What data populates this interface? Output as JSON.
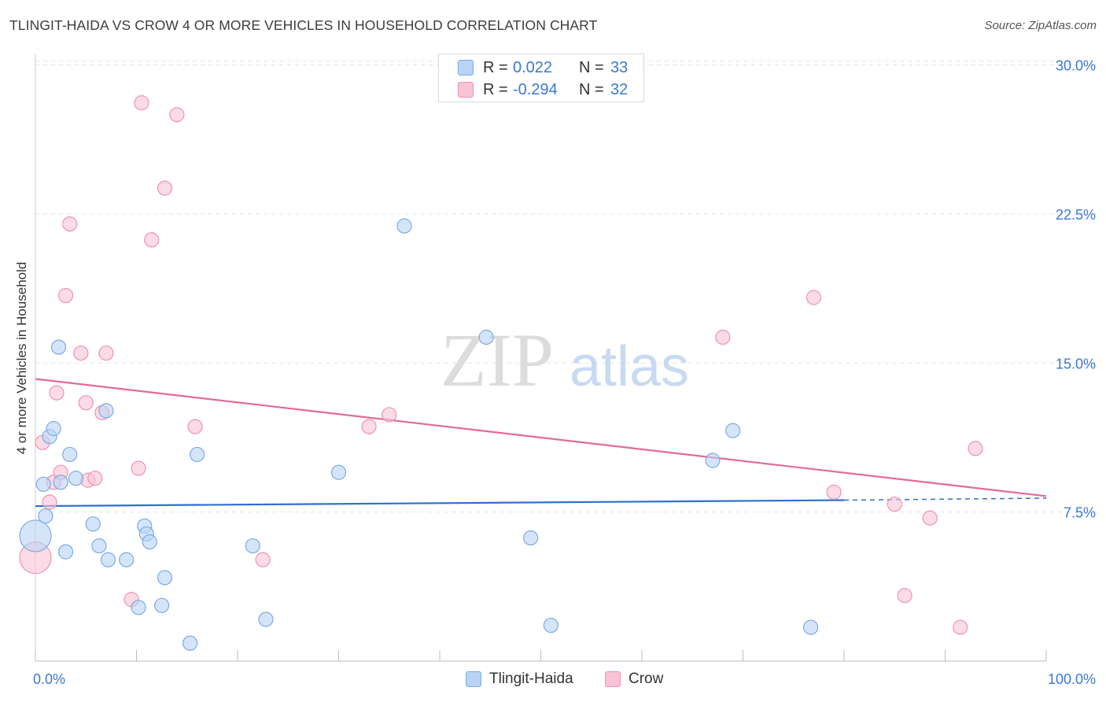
{
  "header": {
    "title": "TLINGIT-HAIDA VS CROW 4 OR MORE VEHICLES IN HOUSEHOLD CORRELATION CHART",
    "source": "Source: ZipAtlas.com"
  },
  "watermark": {
    "zip": "ZIP",
    "atlas": "atlas"
  },
  "legend": {
    "rows": [
      {
        "r_label": "R =",
        "r_value": "0.022",
        "n_label": "N =",
        "n_value": "33"
      },
      {
        "r_label": "R =",
        "r_value": "-0.294",
        "n_label": "N =",
        "n_value": "32"
      }
    ]
  },
  "bottom_legend": {
    "series1": "Tlingit-Haida",
    "series2": "Crow"
  },
  "colors": {
    "tlingit_fill": "#b9d3f5",
    "tlingit_stroke": "#7aaae6",
    "tlingit_line": "#2e6fcf",
    "crow_fill": "#f8c3d3",
    "crow_stroke": "#ee93b0",
    "crow_line": "#e46a95",
    "tick_label": "#3a78d6",
    "grid": "#e3e3e3"
  },
  "chart_data": {
    "type": "scatter",
    "title": "TLINGIT-HAIDA VS CROW 4 OR MORE VEHICLES IN HOUSEHOLD CORRELATION CHART",
    "xlabel": "",
    "ylabel": "4 or more Vehicles in Household",
    "xlim": [
      0,
      100
    ],
    "ylim": [
      0,
      30.5
    ],
    "x_tick_labels": [
      "0.0%",
      "100.0%"
    ],
    "y_ticks": [
      7.5,
      15.0,
      22.5,
      30.0
    ],
    "y_tick_labels": [
      "7.5%",
      "15.0%",
      "22.5%",
      "30.0%"
    ],
    "grid": true,
    "series": [
      {
        "name": "Tlingit-Haida",
        "r": 0.022,
        "n": 33,
        "trend": {
          "x_start": 0,
          "y_start": 7.8,
          "x_solid_end": 80,
          "y_solid_end": 8.1,
          "x_end": 100,
          "y_end": 8.2
        },
        "points": [
          {
            "x": 0.0,
            "y": 6.3,
            "big": true
          },
          {
            "x": 0.8,
            "y": 8.9
          },
          {
            "x": 1.0,
            "y": 7.3
          },
          {
            "x": 1.4,
            "y": 11.3
          },
          {
            "x": 1.8,
            "y": 11.7
          },
          {
            "x": 2.3,
            "y": 15.8
          },
          {
            "x": 2.5,
            "y": 9.0
          },
          {
            "x": 3.0,
            "y": 5.5
          },
          {
            "x": 3.4,
            "y": 10.4
          },
          {
            "x": 4.0,
            "y": 9.2
          },
          {
            "x": 5.7,
            "y": 6.9
          },
          {
            "x": 6.3,
            "y": 5.8
          },
          {
            "x": 7.0,
            "y": 12.6
          },
          {
            "x": 7.2,
            "y": 5.1
          },
          {
            "x": 9.0,
            "y": 5.1
          },
          {
            "x": 10.2,
            "y": 2.7
          },
          {
            "x": 10.8,
            "y": 6.8
          },
          {
            "x": 11.0,
            "y": 6.4
          },
          {
            "x": 11.3,
            "y": 6.0
          },
          {
            "x": 12.5,
            "y": 2.8
          },
          {
            "x": 12.8,
            "y": 4.2
          },
          {
            "x": 15.3,
            "y": 0.9
          },
          {
            "x": 16.0,
            "y": 10.4
          },
          {
            "x": 21.5,
            "y": 5.8
          },
          {
            "x": 22.8,
            "y": 2.1
          },
          {
            "x": 30.0,
            "y": 9.5
          },
          {
            "x": 36.5,
            "y": 21.9
          },
          {
            "x": 44.6,
            "y": 16.3
          },
          {
            "x": 49.0,
            "y": 6.2
          },
          {
            "x": 51.0,
            "y": 1.8
          },
          {
            "x": 67.0,
            "y": 10.1
          },
          {
            "x": 69.0,
            "y": 11.6
          },
          {
            "x": 76.7,
            "y": 1.7
          }
        ]
      },
      {
        "name": "Crow",
        "r": -0.294,
        "n": 32,
        "trend": {
          "x_start": 0,
          "y_start": 14.2,
          "x_end": 100,
          "y_end": 8.3
        },
        "points": [
          {
            "x": 0.0,
            "y": 5.2,
            "big": true
          },
          {
            "x": 0.7,
            "y": 11.0
          },
          {
            "x": 1.4,
            "y": 8.0
          },
          {
            "x": 1.8,
            "y": 9.0
          },
          {
            "x": 2.1,
            "y": 13.5
          },
          {
            "x": 2.5,
            "y": 9.5
          },
          {
            "x": 3.0,
            "y": 18.4
          },
          {
            "x": 3.4,
            "y": 22.0
          },
          {
            "x": 4.5,
            "y": 15.5
          },
          {
            "x": 5.0,
            "y": 13.0
          },
          {
            "x": 5.2,
            "y": 9.1
          },
          {
            "x": 5.9,
            "y": 9.2
          },
          {
            "x": 6.6,
            "y": 12.5
          },
          {
            "x": 7.0,
            "y": 15.5
          },
          {
            "x": 9.5,
            "y": 3.1
          },
          {
            "x": 10.2,
            "y": 9.7
          },
          {
            "x": 10.5,
            "y": 28.1
          },
          {
            "x": 11.5,
            "y": 21.2
          },
          {
            "x": 12.8,
            "y": 23.8
          },
          {
            "x": 14.0,
            "y": 27.5
          },
          {
            "x": 15.8,
            "y": 11.8
          },
          {
            "x": 22.5,
            "y": 5.1
          },
          {
            "x": 33.0,
            "y": 11.8
          },
          {
            "x": 35.0,
            "y": 12.4
          },
          {
            "x": 68.0,
            "y": 16.3
          },
          {
            "x": 77.0,
            "y": 18.3
          },
          {
            "x": 79.0,
            "y": 8.5
          },
          {
            "x": 85.0,
            "y": 7.9
          },
          {
            "x": 86.0,
            "y": 3.3
          },
          {
            "x": 88.5,
            "y": 7.2
          },
          {
            "x": 91.5,
            "y": 1.7
          },
          {
            "x": 93.0,
            "y": 10.7
          }
        ]
      }
    ]
  }
}
